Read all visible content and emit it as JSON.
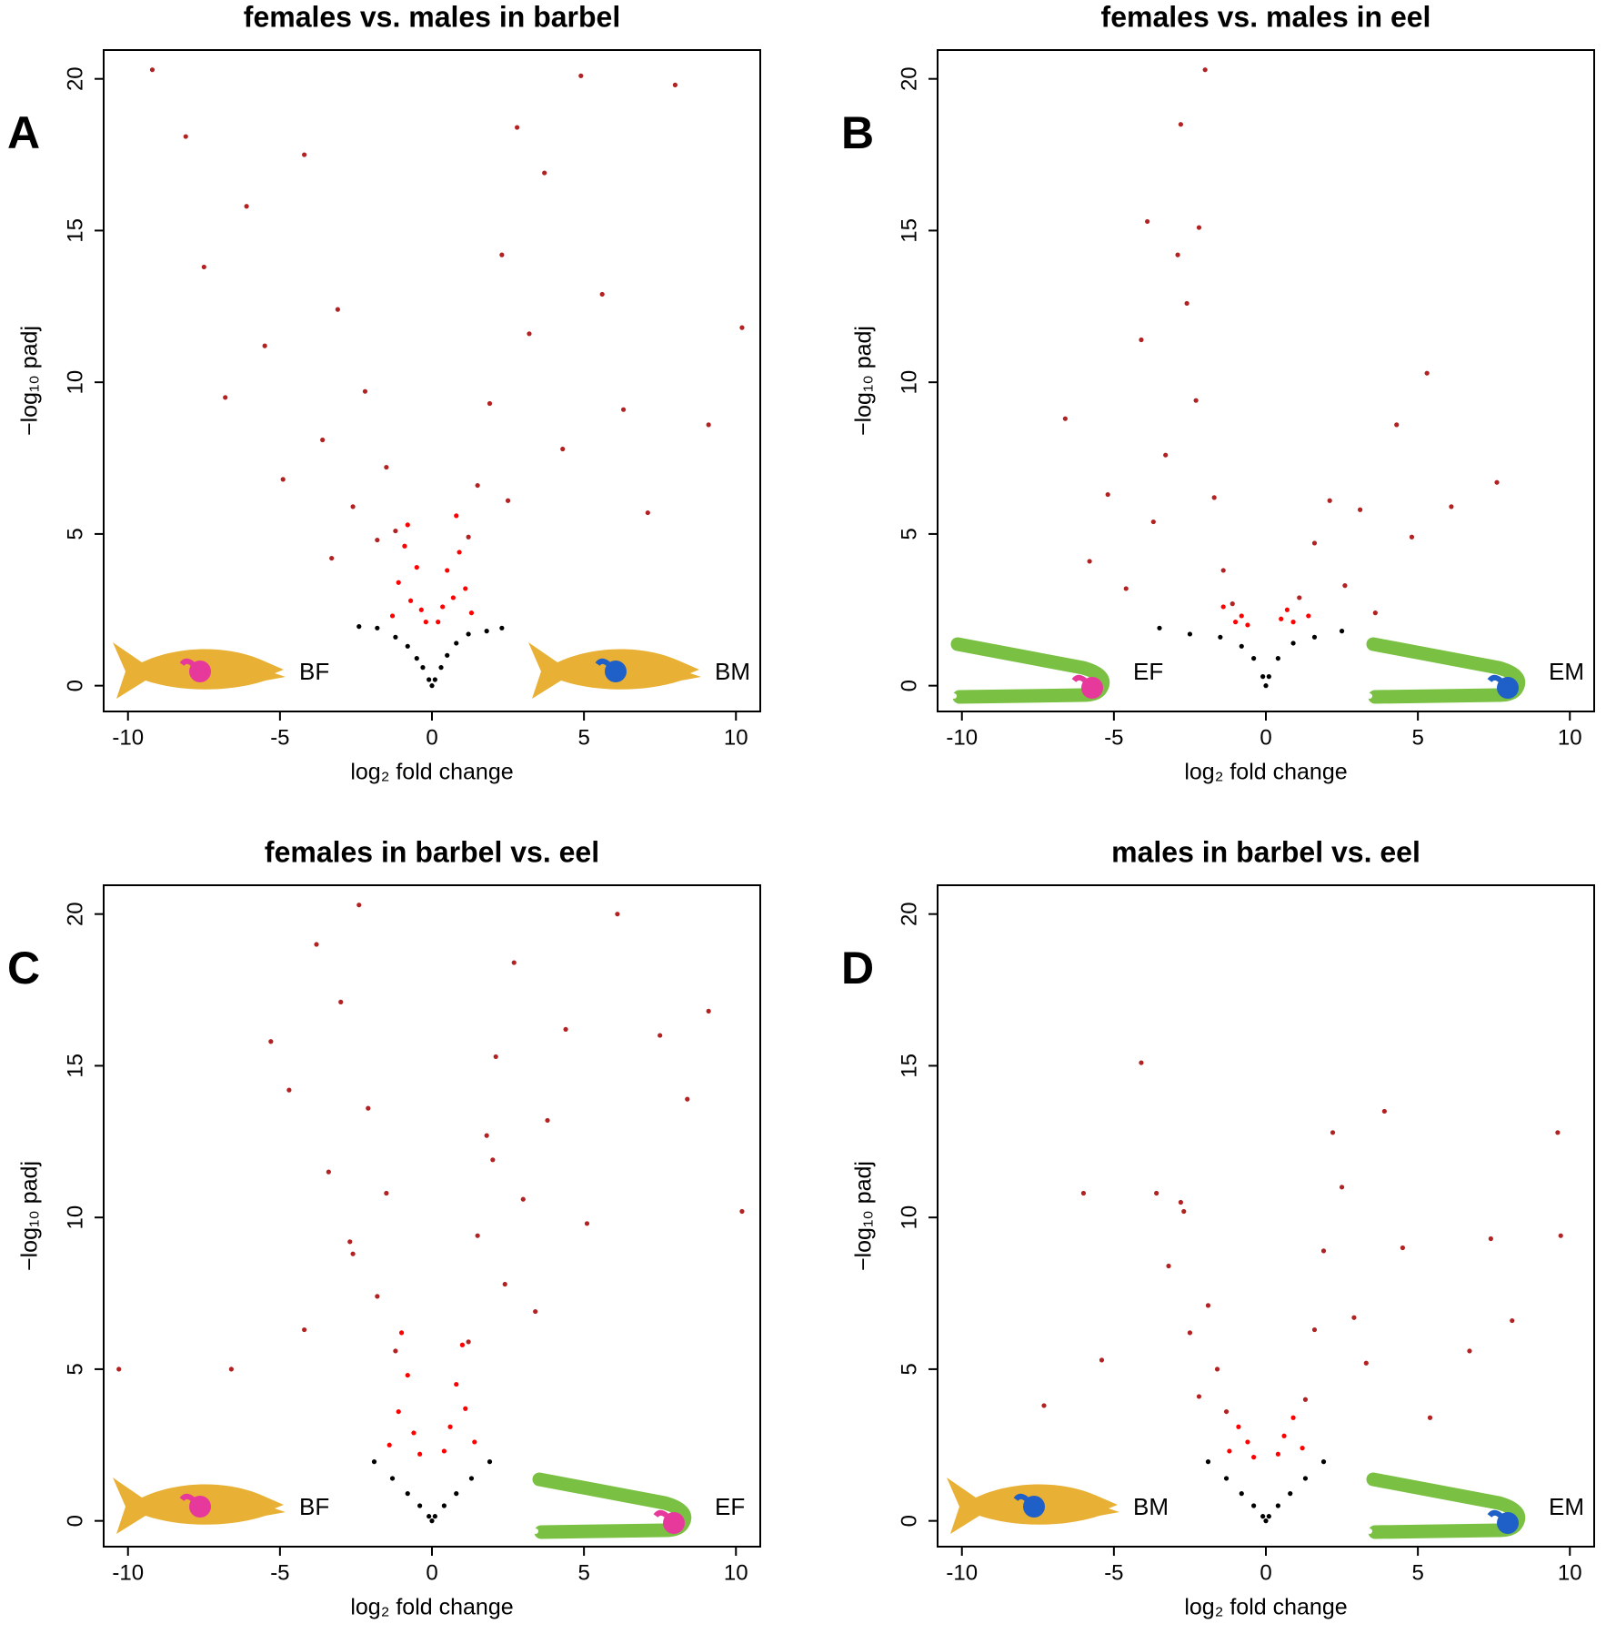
{
  "chart_data": [
    {
      "type": "scatter",
      "title": "females vs. males in barbel",
      "panel_label": "A",
      "xlabel": "log₂ fold change",
      "ylabel": "−log₁₀ padj",
      "xlim": [
        -10.8,
        10.8
      ],
      "ylim": [
        -0.85,
        20.95
      ],
      "xticks": [
        -10,
        -5,
        0,
        5,
        10
      ],
      "yticks": [
        0,
        5,
        10,
        15,
        20
      ],
      "icon_labels": [
        "BF",
        "BM"
      ],
      "series": [
        {
          "color": "#000000",
          "x": [
            -1.8,
            -1.2,
            -0.8,
            -0.5,
            -0.3,
            -0.1,
            0,
            0.1,
            0.3,
            0.5,
            0.8,
            1.2,
            1.8,
            -2.4,
            2.3
          ],
          "y": [
            1.9,
            1.6,
            1.3,
            0.9,
            0.6,
            0.2,
            0.0,
            0.2,
            0.6,
            1.0,
            1.4,
            1.7,
            1.8,
            1.95,
            1.9
          ]
        },
        {
          "color": "#ff0000",
          "x": [
            -1.3,
            -1.1,
            -0.9,
            -0.7,
            -0.5,
            -0.35,
            -0.2,
            0.2,
            0.35,
            0.5,
            0.7,
            0.9,
            1.1,
            1.3,
            -0.8,
            0.8
          ],
          "y": [
            2.3,
            3.4,
            4.6,
            2.8,
            3.9,
            2.5,
            2.1,
            2.1,
            2.6,
            3.8,
            2.9,
            4.4,
            3.2,
            2.4,
            5.3,
            5.6
          ]
        },
        {
          "color": "#b22222",
          "x": [
            -9.2,
            -8.1,
            -7.5,
            -6.8,
            -6.1,
            -5.5,
            -4.9,
            -4.2,
            -3.6,
            -3.1,
            -2.6,
            -2.2,
            -1.8,
            -1.5,
            -1.2,
            1.2,
            1.5,
            1.9,
            2.3,
            2.8,
            3.2,
            3.7,
            4.3,
            4.9,
            5.6,
            6.3,
            7.1,
            8.0,
            9.1,
            10.2,
            -3.3,
            2.5
          ],
          "y": [
            20.3,
            18.1,
            13.8,
            9.5,
            15.8,
            11.2,
            6.8,
            17.5,
            8.1,
            12.4,
            5.9,
            9.7,
            4.8,
            7.2,
            5.1,
            4.9,
            6.6,
            9.3,
            14.2,
            18.4,
            11.6,
            16.9,
            7.8,
            20.1,
            12.9,
            9.1,
            5.7,
            19.8,
            8.6,
            11.8,
            4.2,
            6.1
          ]
        }
      ]
    },
    {
      "type": "scatter",
      "title": "females vs. males in eel",
      "panel_label": "B",
      "xlabel": "log₂ fold change",
      "ylabel": "−log₁₀ padj",
      "xlim": [
        -10.8,
        10.8
      ],
      "ylim": [
        -0.85,
        20.95
      ],
      "xticks": [
        -10,
        -5,
        0,
        5,
        10
      ],
      "yticks": [
        0,
        5,
        10,
        15,
        20
      ],
      "icon_labels": [
        "EF",
        "EM"
      ],
      "series": [
        {
          "color": "#000000",
          "x": [
            -3.5,
            -2.5,
            -1.5,
            -0.8,
            -0.4,
            -0.1,
            0,
            0.1,
            0.4,
            0.9,
            1.6,
            2.5
          ],
          "y": [
            1.9,
            1.7,
            1.6,
            1.3,
            0.9,
            0.3,
            0,
            0.3,
            0.9,
            1.4,
            1.6,
            1.8
          ]
        },
        {
          "color": "#ff0000",
          "x": [
            -1.0,
            -0.8,
            -0.6,
            0.5,
            0.7,
            0.9,
            -1.4,
            1.4
          ],
          "y": [
            2.1,
            2.3,
            2.0,
            2.2,
            2.5,
            2.1,
            2.6,
            2.3
          ]
        },
        {
          "color": "#b22222",
          "x": [
            -6.6,
            -5.8,
            -5.2,
            -4.6,
            -4.1,
            -3.7,
            -3.3,
            -2.9,
            -2.6,
            -2.3,
            -2.0,
            -1.7,
            -1.4,
            -1.1,
            1.1,
            1.6,
            2.1,
            2.6,
            3.1,
            3.6,
            4.3,
            4.8,
            5.3,
            6.1,
            7.6,
            -2.2,
            -2.8,
            -3.9
          ],
          "y": [
            8.8,
            4.1,
            6.3,
            3.2,
            11.4,
            5.4,
            7.6,
            14.2,
            12.6,
            9.4,
            20.3,
            6.2,
            3.8,
            2.7,
            2.9,
            4.7,
            6.1,
            3.3,
            5.8,
            2.4,
            8.6,
            4.9,
            10.3,
            5.9,
            6.7,
            15.1,
            18.5,
            15.3
          ]
        }
      ]
    },
    {
      "type": "scatter",
      "title": "females in barbel vs. eel",
      "panel_label": "C",
      "xlabel": "log₂ fold change",
      "ylabel": "−log₁₀ padj",
      "xlim": [
        -10.8,
        10.8
      ],
      "ylim": [
        -0.85,
        20.95
      ],
      "xticks": [
        -10,
        -5,
        0,
        5,
        10
      ],
      "yticks": [
        0,
        5,
        10,
        15,
        20
      ],
      "icon_labels": [
        "BF",
        "EF"
      ],
      "series": [
        {
          "color": "#000000",
          "x": [
            -1.9,
            -1.3,
            -0.8,
            -0.4,
            -0.1,
            0,
            0.1,
            0.4,
            0.8,
            1.3,
            1.9
          ],
          "y": [
            1.95,
            1.4,
            0.9,
            0.5,
            0.15,
            0,
            0.15,
            0.5,
            0.9,
            1.4,
            1.95
          ]
        },
        {
          "color": "#ff0000",
          "x": [
            -1.4,
            -1.1,
            -0.8,
            -0.6,
            -0.4,
            0.4,
            0.6,
            0.8,
            1.1,
            1.4,
            -1.0,
            1.0
          ],
          "y": [
            2.5,
            3.6,
            4.8,
            2.9,
            2.2,
            2.3,
            3.1,
            4.5,
            3.7,
            2.6,
            6.2,
            5.8
          ]
        },
        {
          "color": "#b22222",
          "x": [
            -5.3,
            -4.7,
            -4.2,
            -3.8,
            -3.4,
            -3.0,
            -2.7,
            -2.4,
            -2.1,
            -1.8,
            -1.5,
            -1.2,
            1.2,
            1.5,
            1.8,
            2.1,
            2.4,
            2.7,
            3.0,
            3.4,
            3.8,
            4.4,
            5.1,
            6.1,
            7.5,
            8.4,
            9.1,
            10.2,
            -10.3,
            -6.6,
            -2.6,
            2.0
          ],
          "y": [
            15.8,
            14.2,
            6.3,
            19.0,
            11.5,
            17.1,
            9.2,
            20.3,
            13.6,
            7.4,
            10.8,
            5.6,
            5.9,
            9.4,
            12.7,
            15.3,
            7.8,
            18.4,
            10.6,
            6.9,
            13.2,
            16.2,
            9.8,
            20.0,
            16.0,
            13.9,
            16.8,
            10.2,
            5.0,
            5.0,
            8.8,
            11.9
          ]
        }
      ]
    },
    {
      "type": "scatter",
      "title": "males in barbel vs. eel",
      "panel_label": "D",
      "xlabel": "log₂ fold change",
      "ylabel": "−log₁₀ padj",
      "xlim": [
        -10.8,
        10.8
      ],
      "ylim": [
        -0.85,
        20.95
      ],
      "xticks": [
        -10,
        -5,
        0,
        5,
        10
      ],
      "yticks": [
        0,
        5,
        10,
        15,
        20
      ],
      "icon_labels": [
        "BM",
        "EM"
      ],
      "series": [
        {
          "color": "#000000",
          "x": [
            -1.9,
            -1.3,
            -0.8,
            -0.4,
            -0.1,
            0,
            0.1,
            0.4,
            0.8,
            1.3,
            1.9
          ],
          "y": [
            1.95,
            1.4,
            0.9,
            0.5,
            0.15,
            0,
            0.15,
            0.5,
            0.9,
            1.4,
            1.95
          ]
        },
        {
          "color": "#ff0000",
          "x": [
            -1.2,
            -0.9,
            -0.6,
            -0.4,
            0.4,
            0.6,
            0.9,
            1.2
          ],
          "y": [
            2.3,
            3.1,
            2.6,
            2.1,
            2.2,
            2.8,
            3.4,
            2.4
          ]
        },
        {
          "color": "#b22222",
          "x": [
            -7.3,
            -5.4,
            -4.1,
            -3.6,
            -3.2,
            -2.8,
            -2.5,
            -2.2,
            -1.9,
            -1.6,
            -1.3,
            1.3,
            1.6,
            1.9,
            2.2,
            2.5,
            2.9,
            3.3,
            3.9,
            4.5,
            5.4,
            6.7,
            7.4,
            8.1,
            9.6,
            9.7,
            -6.0,
            -2.7
          ],
          "y": [
            3.8,
            5.3,
            15.1,
            10.8,
            8.4,
            10.5,
            6.2,
            4.1,
            7.1,
            5.0,
            3.6,
            4.0,
            6.3,
            8.9,
            12.8,
            11.0,
            6.7,
            5.2,
            13.5,
            9.0,
            3.4,
            5.6,
            9.3,
            6.6,
            12.8,
            9.4,
            10.8,
            10.2
          ]
        }
      ]
    }
  ]
}
